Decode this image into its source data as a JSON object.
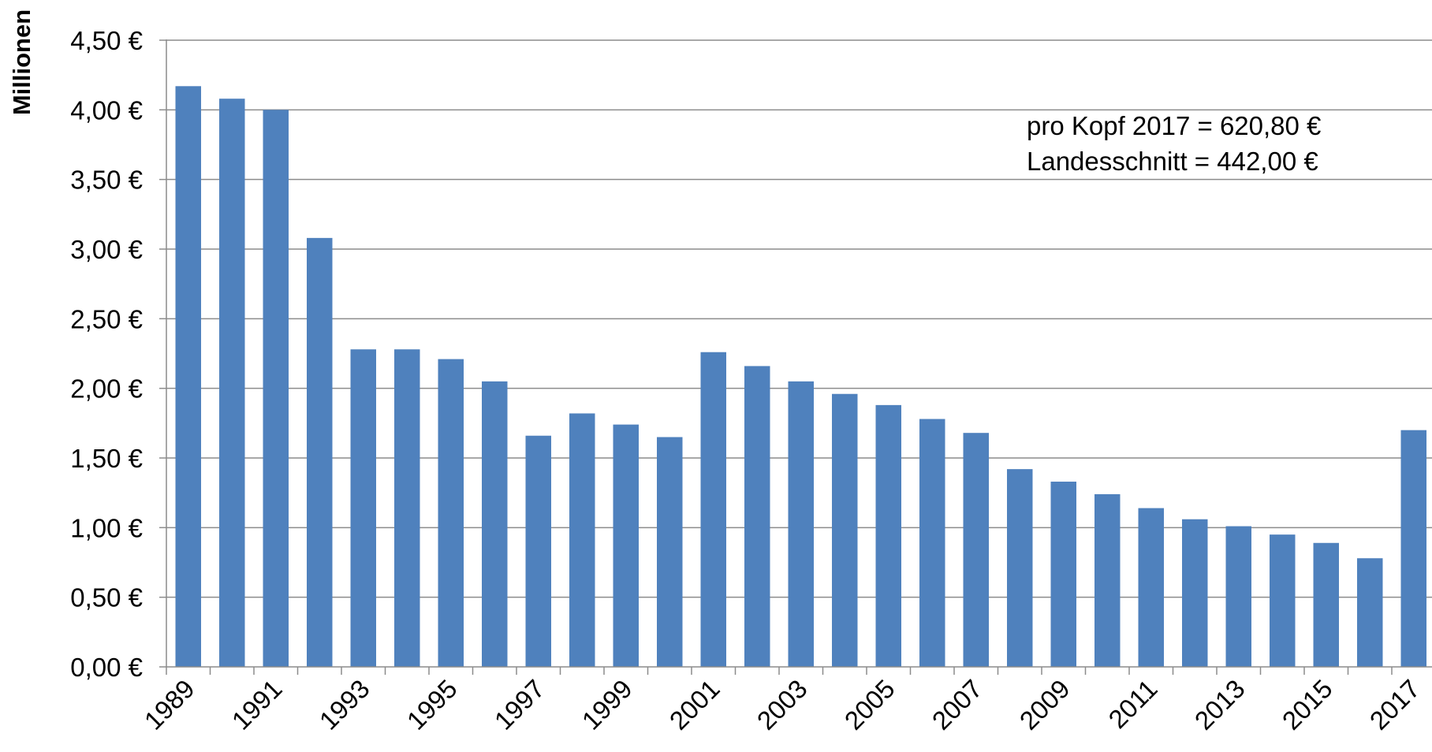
{
  "chart_data": {
    "type": "bar",
    "title": "",
    "xlabel": "",
    "ylabel": "Millionen",
    "ylim": [
      0,
      4.5
    ],
    "y_ticks": [
      0,
      0.5,
      1.0,
      1.5,
      2.0,
      2.5,
      3.0,
      3.5,
      4.0,
      4.5
    ],
    "y_tick_labels": [
      "0,00 €",
      "0,50 €",
      "1,00 €",
      "1,50 €",
      "2,00 €",
      "2,50 €",
      "3,00 €",
      "3,50 €",
      "4,00 €",
      "4,50 €"
    ],
    "categories": [
      "1989",
      "1990",
      "1991",
      "1992",
      "1993",
      "1994",
      "1995",
      "1996",
      "1997",
      "1998",
      "1999",
      "2000",
      "2001",
      "2002",
      "2003",
      "2004",
      "2005",
      "2006",
      "2007",
      "2008",
      "2009",
      "2010",
      "2011",
      "2012",
      "2013",
      "2014",
      "2015",
      "2016",
      "2017"
    ],
    "x_tick_labels": [
      "1989",
      "",
      "1991",
      "",
      "1993",
      "",
      "1995",
      "",
      "1997",
      "",
      "1999",
      "",
      "2001",
      "",
      "2003",
      "",
      "2005",
      "",
      "2007",
      "",
      "2009",
      "",
      "2011",
      "",
      "2013",
      "",
      "2015",
      "",
      "2017"
    ],
    "values": [
      4.17,
      4.08,
      4.0,
      3.08,
      2.28,
      2.28,
      2.21,
      2.05,
      1.66,
      1.82,
      1.74,
      1.65,
      2.26,
      2.16,
      2.05,
      1.96,
      1.88,
      1.78,
      1.68,
      1.42,
      1.33,
      1.24,
      1.14,
      1.06,
      1.01,
      0.95,
      0.89,
      0.78,
      1.7
    ],
    "bar_color": "#4F81BD",
    "grid": true,
    "legend": "none",
    "annotations": [
      "pro Kopf 2017 = 620,80 €",
      "Landesschnitt = 442,00 €"
    ]
  }
}
